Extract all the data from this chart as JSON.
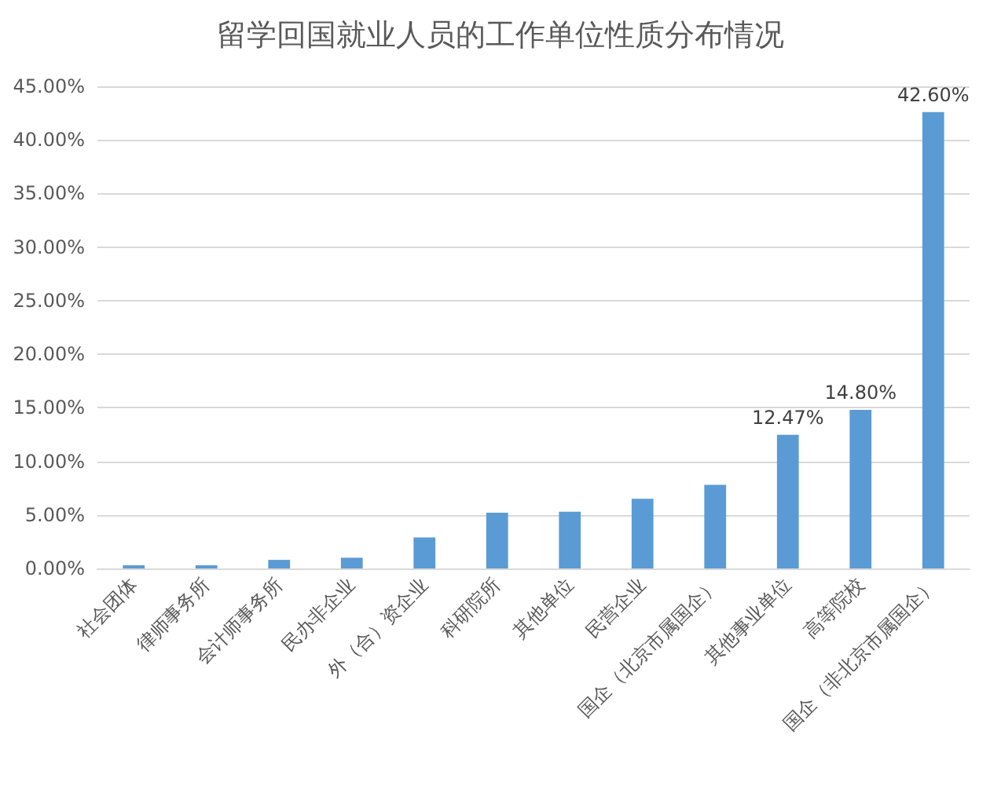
{
  "chart_data": {
    "type": "bar",
    "title": "留学回国就业人员的工作单位性质分布情况",
    "categories": [
      "社会团体",
      "律师事务所",
      "会计师事务所",
      "民办非企业",
      "外（合）资企业",
      "科研院所",
      "其他单位",
      "民营企业",
      "国企（北京市属国企）",
      "其他事业单位",
      "高等院校",
      "国企（非北京市属国企）"
    ],
    "values": [
      0.3,
      0.3,
      0.8,
      1.0,
      2.9,
      5.2,
      5.3,
      6.5,
      7.8,
      12.47,
      14.8,
      42.6
    ],
    "value_labels": [
      null,
      null,
      null,
      null,
      null,
      null,
      null,
      null,
      null,
      "12.47%",
      "14.80%",
      "42.60%"
    ],
    "color": "#5b9bd5",
    "ylim": [
      0,
      45
    ],
    "yticks": [
      {
        "value": 0,
        "label": "0.00%"
      },
      {
        "value": 5,
        "label": "5.00%"
      },
      {
        "value": 10,
        "label": "10.00%"
      },
      {
        "value": 15,
        "label": "15.00%"
      },
      {
        "value": 20,
        "label": "20.00%"
      },
      {
        "value": 25,
        "label": "25.00%"
      },
      {
        "value": 30,
        "label": "30.00%"
      },
      {
        "value": 35,
        "label": "35.00%"
      },
      {
        "value": 40,
        "label": "40.00%"
      },
      {
        "value": 45,
        "label": "45.00%"
      }
    ],
    "grid": "y"
  }
}
